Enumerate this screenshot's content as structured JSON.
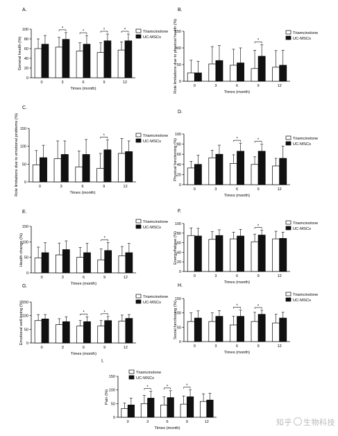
{
  "figure": {
    "legend": [
      "Triamcinolone",
      "UC-MSCs"
    ],
    "xlabel": "Times (month)",
    "watermark_left": "知乎",
    "watermark_right": "生物科技"
  },
  "colors": {
    "triamcinolone": "#ffffff",
    "ucmsc": "#111111",
    "axis": "#000000"
  },
  "chart_data": [
    {
      "panel": "A.",
      "type": "bar",
      "ylabel": "General health (%)",
      "ylim": [
        0,
        100
      ],
      "yticks": [
        0,
        20,
        40,
        60,
        80,
        100
      ],
      "categories": [
        "0",
        "3",
        "6",
        "9",
        "12"
      ],
      "series": [
        {
          "name": "Triamcinolone",
          "values": [
            60,
            63,
            55,
            52,
            57
          ],
          "errors": [
            20,
            20,
            17,
            20,
            17
          ]
        },
        {
          "name": "UC-MSCs",
          "values": [
            69,
            79,
            69,
            76,
            76
          ],
          "errors": [
            18,
            14,
            18,
            14,
            14
          ]
        }
      ],
      "significance": [
        "3",
        "6",
        "9",
        "12"
      ],
      "legend_position": "top-right"
    },
    {
      "panel": "B.",
      "type": "bar",
      "ylabel": "Role limitations due to physical health (%)",
      "ylim": [
        0,
        150
      ],
      "yticks": [
        0,
        50,
        100,
        150
      ],
      "categories": [
        "0",
        "3",
        "6",
        "9",
        "12"
      ],
      "series": [
        {
          "name": "Triamcinolone",
          "values": [
            25,
            52,
            48,
            38,
            42
          ],
          "errors": [
            38,
            52,
            48,
            55,
            50
          ]
        },
        {
          "name": "UC-MSCs",
          "values": [
            25,
            62,
            55,
            75,
            48
          ],
          "errors": [
            35,
            45,
            45,
            35,
            45
          ]
        }
      ],
      "significance": [
        "9"
      ],
      "legend_position": "top-right"
    },
    {
      "panel": "C.",
      "type": "bar",
      "ylabel": "Role limitations due to emotional problems (%)",
      "ylim": [
        0,
        150
      ],
      "yticks": [
        0,
        50,
        100,
        150
      ],
      "categories": [
        "0",
        "3",
        "6",
        "9",
        "12"
      ],
      "series": [
        {
          "name": "Triamcinolone",
          "values": [
            48,
            65,
            42,
            38,
            80
          ],
          "errors": [
            40,
            50,
            45,
            42,
            42
          ]
        },
        {
          "name": "UC-MSCs",
          "values": [
            68,
            77,
            77,
            90,
            85
          ],
          "errors": [
            35,
            38,
            42,
            28,
            30
          ]
        }
      ],
      "significance": [
        "9"
      ],
      "legend_position": "top-right"
    },
    {
      "panel": "D.",
      "type": "bar",
      "ylabel": "Physical functioning (%)",
      "ylim": [
        0,
        100
      ],
      "yticks": [
        0,
        20,
        40,
        60,
        80,
        100
      ],
      "categories": [
        "0",
        "3",
        "6",
        "9",
        "12"
      ],
      "series": [
        {
          "name": "Triamcinolone",
          "values": [
            33,
            53,
            42,
            40,
            37
          ],
          "errors": [
            13,
            15,
            17,
            15,
            15
          ]
        },
        {
          "name": "UC-MSCs",
          "values": [
            40,
            60,
            66,
            66,
            52
          ],
          "errors": [
            18,
            18,
            16,
            14,
            24
          ]
        }
      ],
      "significance": [
        "6",
        "9"
      ],
      "legend_position": "top-right"
    },
    {
      "panel": "E.",
      "type": "bar",
      "ylabel": "Health change (%)",
      "ylim": [
        0,
        150
      ],
      "yticks": [
        0,
        50,
        100,
        150
      ],
      "categories": [
        "0",
        "3",
        "6",
        "9",
        "12"
      ],
      "series": [
        {
          "name": "Triamcinolone",
          "values": [
            48,
            58,
            50,
            42,
            55
          ],
          "errors": [
            35,
            38,
            32,
            35,
            30
          ]
        },
        {
          "name": "UC-MSCs",
          "values": [
            65,
            75,
            65,
            72,
            65
          ],
          "errors": [
            32,
            28,
            30,
            26,
            30
          ]
        }
      ],
      "significance": [
        "9"
      ],
      "legend_position": "top-right"
    },
    {
      "panel": "F.",
      "type": "bar",
      "ylabel": "Energy/fatigue (%)",
      "ylim": [
        0,
        100
      ],
      "yticks": [
        0,
        20,
        40,
        60,
        80,
        100
      ],
      "categories": [
        "0",
        "3",
        "6",
        "9",
        "12"
      ],
      "series": [
        {
          "name": "Triamcinolone",
          "values": [
            75,
            67,
            68,
            62,
            68
          ],
          "errors": [
            16,
            16,
            14,
            16,
            16
          ]
        },
        {
          "name": "UC-MSCs",
          "values": [
            74,
            75,
            74,
            76,
            69
          ],
          "errors": [
            16,
            12,
            14,
            10,
            13
          ]
        }
      ],
      "significance": [
        "9"
      ],
      "legend_position": "top-right"
    },
    {
      "panel": "G.",
      "type": "bar",
      "ylabel": "Emotional well-being (%)",
      "ylim": [
        0,
        150
      ],
      "yticks": [
        0,
        50,
        100,
        150
      ],
      "categories": [
        "0",
        "3",
        "6",
        "9",
        "12"
      ],
      "series": [
        {
          "name": "Triamcinolone",
          "values": [
            82,
            67,
            62,
            62,
            80
          ],
          "errors": [
            22,
            22,
            20,
            20,
            22
          ]
        },
        {
          "name": "UC-MSCs",
          "values": [
            88,
            78,
            78,
            82,
            90
          ],
          "errors": [
            16,
            18,
            18,
            15,
            14
          ]
        }
      ],
      "significance": [
        "6",
        "9"
      ],
      "legend_position": "top-right"
    },
    {
      "panel": "H.",
      "type": "bar",
      "ylabel": "Social functioning (%)",
      "ylim": [
        0,
        150
      ],
      "yticks": [
        0,
        50,
        100,
        150
      ],
      "categories": [
        "0",
        "3",
        "6",
        "9",
        "12"
      ],
      "series": [
        {
          "name": "Triamcinolone",
          "values": [
            70,
            70,
            58,
            70,
            65
          ],
          "errors": [
            30,
            30,
            30,
            32,
            30
          ]
        },
        {
          "name": "UC-MSCs",
          "values": [
            82,
            88,
            88,
            95,
            82
          ],
          "errors": [
            25,
            20,
            22,
            14,
            20
          ]
        }
      ],
      "significance": [
        "6",
        "9"
      ],
      "legend_position": "top-right"
    },
    {
      "panel": "I.",
      "type": "bar",
      "ylabel": "Pain (%)",
      "ylim": [
        0,
        150
      ],
      "yticks": [
        0,
        50,
        100,
        150
      ],
      "categories": [
        "0",
        "3",
        "6",
        "9",
        "12"
      ],
      "series": [
        {
          "name": "Triamcinolone",
          "values": [
            32,
            50,
            45,
            48,
            58
          ],
          "errors": [
            20,
            30,
            30,
            30,
            28
          ]
        },
        {
          "name": "UC-MSCs",
          "values": [
            45,
            70,
            72,
            75,
            63
          ],
          "errors": [
            25,
            25,
            25,
            25,
            25
          ]
        }
      ],
      "significance": [
        "3",
        "6",
        "9"
      ],
      "legend_position": "top-left"
    }
  ]
}
